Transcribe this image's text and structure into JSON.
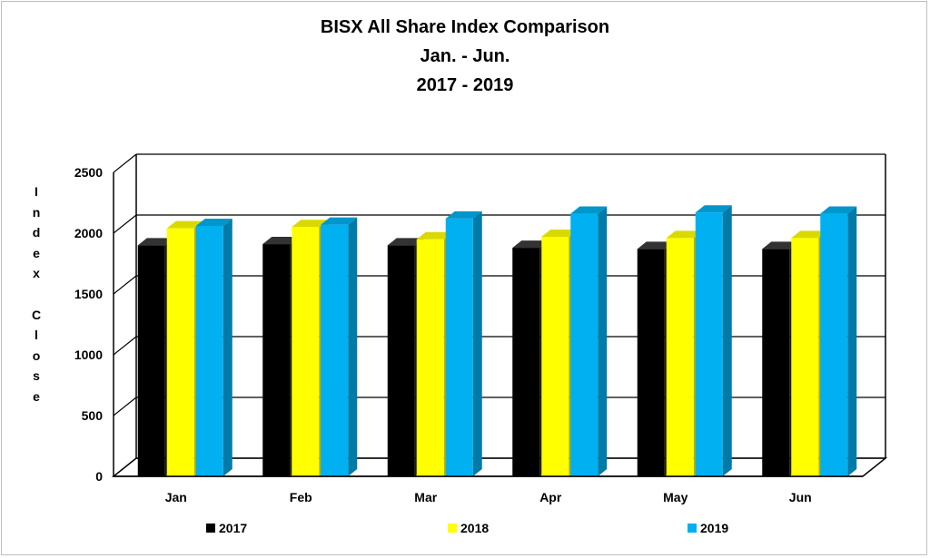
{
  "chart_data": {
    "type": "bar",
    "title_lines": [
      "BISX All Share Index Comparison",
      "Jan. - Jun.",
      "2017 - 2019"
    ],
    "xlabel": "",
    "ylabel": "Index Close",
    "ylabel_letters": [
      "I",
      "n",
      "d",
      "e",
      "x",
      "",
      "C",
      "l",
      "o",
      "s",
      "e"
    ],
    "ylim": [
      0,
      2500
    ],
    "yticks": [
      "0",
      "500",
      "1000",
      "1500",
      "2000",
      "2500"
    ],
    "categories": [
      "Jan",
      "Feb",
      "Mar",
      "Apr",
      "May",
      "Jun"
    ],
    "series": [
      {
        "name": "2017",
        "color": "#000000",
        "values": [
          1900,
          1910,
          1900,
          1880,
          1870,
          1870
        ]
      },
      {
        "name": "2018",
        "color": "#FFFF00",
        "values": [
          2040,
          2050,
          1950,
          1970,
          1960,
          1960
        ]
      },
      {
        "name": "2019",
        "color": "#00B0F0",
        "values": [
          2060,
          2070,
          2120,
          2160,
          2170,
          2160
        ]
      }
    ],
    "grid": true,
    "legend_position": "bottom"
  }
}
